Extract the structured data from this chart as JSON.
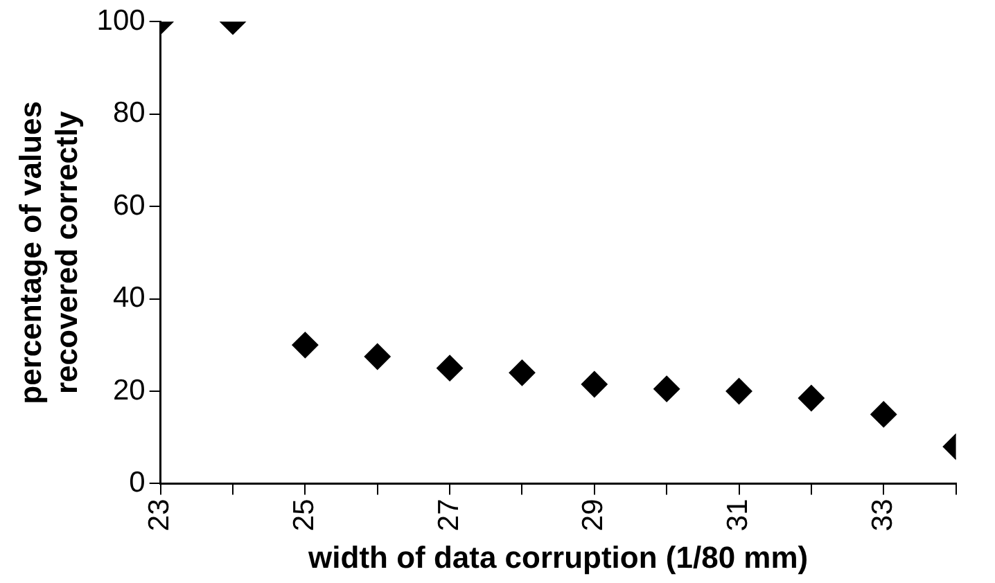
{
  "chart_data": {
    "type": "scatter",
    "xlabel": "width of data corruption (1/80 mm)",
    "ylabel": "percentage of values\nrecovered correctly",
    "x": [
      23,
      24,
      25,
      26,
      27,
      28,
      29,
      30,
      31,
      32,
      33,
      34
    ],
    "values": [
      100,
      100,
      30,
      27.5,
      25,
      24,
      21.5,
      20.5,
      20,
      18.5,
      15,
      8
    ],
    "color": "#000000",
    "marker": "diamond",
    "grid": false,
    "legend": false,
    "xlim": [
      23,
      34
    ],
    "xticks": [
      23,
      {
        "value": 24,
        "label": null
      },
      25,
      {
        "value": 26,
        "label": null
      },
      27,
      {
        "value": 28,
        "label": null
      },
      29,
      {
        "value": 30,
        "label": null
      },
      31,
      {
        "value": 32,
        "label": null
      },
      33,
      {
        "value": 34,
        "label": null
      }
    ],
    "ylim": [
      0,
      100
    ],
    "yticks": [
      0,
      20,
      40,
      60,
      80,
      100
    ]
  }
}
